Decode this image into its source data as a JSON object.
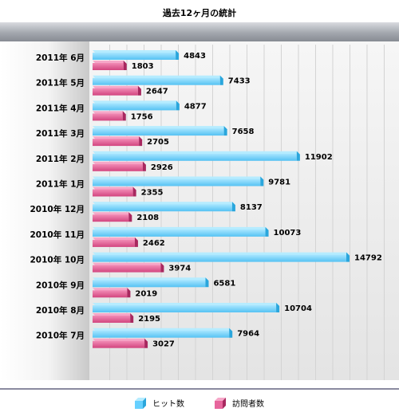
{
  "chart_data": {
    "type": "bar",
    "orientation": "horizontal",
    "title": "過去12ヶ月の統計",
    "categories": [
      "2011年 6月",
      "2011年 5月",
      "2011年 4月",
      "2011年 3月",
      "2011年 2月",
      "2011年 1月",
      "2010年 12月",
      "2010年 11月",
      "2010年 10月",
      "2010年 9月",
      "2010年 8月",
      "2010年 7月"
    ],
    "series": [
      {
        "name": "ヒット数",
        "color": "#66d0ff",
        "values": [
          4843,
          7433,
          4877,
          7658,
          11902,
          9781,
          8137,
          10073,
          14792,
          6581,
          10704,
          7964
        ]
      },
      {
        "name": "訪問者数",
        "color": "#e7659c",
        "values": [
          1803,
          2647,
          1756,
          2705,
          2926,
          2355,
          2108,
          2462,
          3974,
          2019,
          2195,
          3027
        ]
      }
    ],
    "xlim": [
      0,
      17000
    ],
    "grid": true,
    "legend": "bottom"
  }
}
